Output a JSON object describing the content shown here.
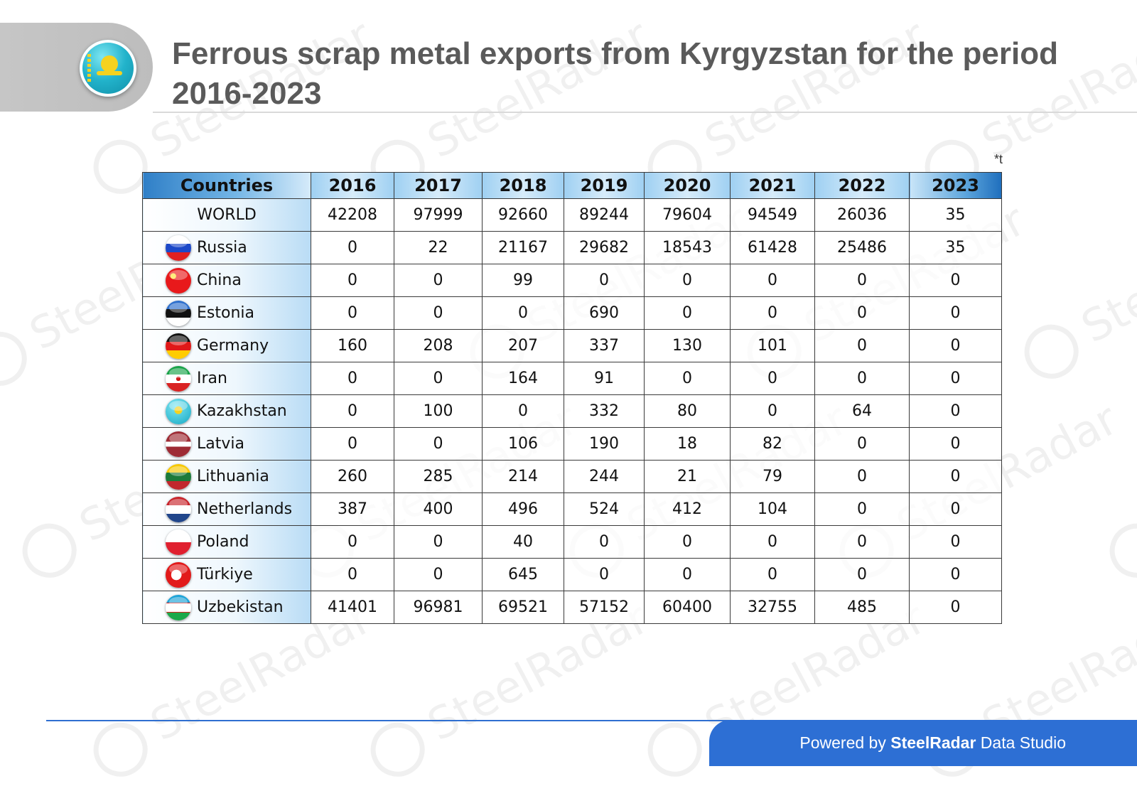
{
  "header": {
    "title": "Ferrous scrap metal exports from Kyrgyzstan for the period 2016-2023",
    "flag_icon": "kazakhstan-flag-icon",
    "unit_note": "*t"
  },
  "watermark": {
    "text": "SteelRadar"
  },
  "footer": {
    "prefix": "Powered by",
    "brand": "SteelRadar",
    "suffix": "Data Studio",
    "color": "#2d6fd4"
  },
  "chart_data": {
    "type": "table",
    "title": "Ferrous scrap metal exports from Kyrgyzstan for the period 2016-2023",
    "unit": "*t",
    "columns": [
      "Countries",
      "2016",
      "2017",
      "2018",
      "2019",
      "2020",
      "2021",
      "2022",
      "2023"
    ],
    "rows": [
      {
        "country": "WORLD",
        "flag": "",
        "values": [
          42208,
          97999,
          92660,
          89244,
          79604,
          94549,
          26036,
          35
        ]
      },
      {
        "country": "Russia",
        "flag": "russia",
        "values": [
          0,
          22,
          21167,
          29682,
          18543,
          61428,
          25486,
          35
        ]
      },
      {
        "country": "China",
        "flag": "china",
        "values": [
          0,
          0,
          99,
          0,
          0,
          0,
          0,
          0
        ]
      },
      {
        "country": "Estonia",
        "flag": "estonia",
        "values": [
          0,
          0,
          0,
          690,
          0,
          0,
          0,
          0
        ]
      },
      {
        "country": "Germany",
        "flag": "germany",
        "values": [
          160,
          208,
          207,
          337,
          130,
          101,
          0,
          0
        ]
      },
      {
        "country": "Iran",
        "flag": "iran",
        "values": [
          0,
          0,
          164,
          91,
          0,
          0,
          0,
          0
        ]
      },
      {
        "country": "Kazakhstan",
        "flag": "kazakhstan",
        "values": [
          0,
          100,
          0,
          332,
          80,
          0,
          64,
          0
        ]
      },
      {
        "country": "Latvia",
        "flag": "latvia",
        "values": [
          0,
          0,
          106,
          190,
          18,
          82,
          0,
          0
        ]
      },
      {
        "country": "Lithuania",
        "flag": "lithuania",
        "values": [
          260,
          285,
          214,
          244,
          21,
          79,
          0,
          0
        ]
      },
      {
        "country": "Netherlands",
        "flag": "netherlands",
        "values": [
          387,
          400,
          496,
          524,
          412,
          104,
          0,
          0
        ]
      },
      {
        "country": "Poland",
        "flag": "poland",
        "values": [
          0,
          0,
          40,
          0,
          0,
          0,
          0,
          0
        ]
      },
      {
        "country": "Türkiye",
        "flag": "turkiye",
        "values": [
          0,
          0,
          645,
          0,
          0,
          0,
          0,
          0
        ]
      },
      {
        "country": "Uzbekistan",
        "flag": "uzbekistan",
        "values": [
          41401,
          96981,
          69521,
          57152,
          60400,
          32755,
          485,
          0
        ]
      }
    ]
  }
}
